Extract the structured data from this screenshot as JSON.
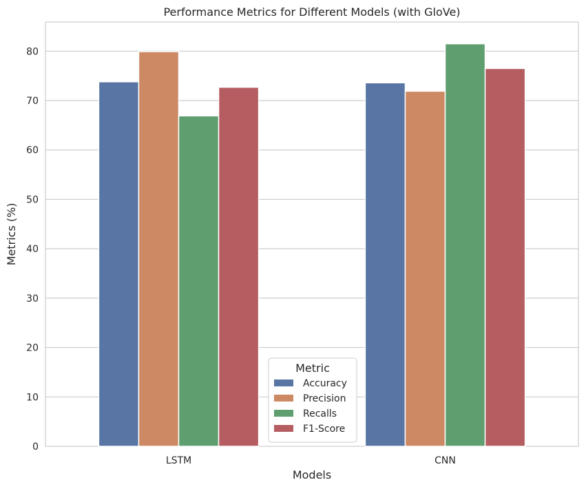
{
  "chart_data": {
    "type": "bar",
    "title": "Performance Metrics for Different Models (with GloVe)",
    "xlabel": "Models",
    "ylabel": "Metrics (%)",
    "categories": [
      "LSTM",
      "CNN"
    ],
    "series": [
      {
        "name": "Accuracy",
        "values": [
          73.8,
          73.6
        ],
        "color": "#5875a4"
      },
      {
        "name": "Precision",
        "values": [
          79.9,
          71.9
        ],
        "color": "#cc8963"
      },
      {
        "name": "Recalls",
        "values": [
          66.9,
          81.5
        ],
        "color": "#5f9e6e"
      },
      {
        "name": "F1-Score",
        "values": [
          72.7,
          76.5
        ],
        "color": "#b55d60"
      }
    ],
    "ylim": [
      0,
      85.9
    ],
    "yticks": [
      0,
      10,
      20,
      30,
      40,
      50,
      60,
      70,
      80
    ],
    "grid": "y",
    "legend": {
      "title": "Metric",
      "placement": "bottom-center"
    }
  }
}
